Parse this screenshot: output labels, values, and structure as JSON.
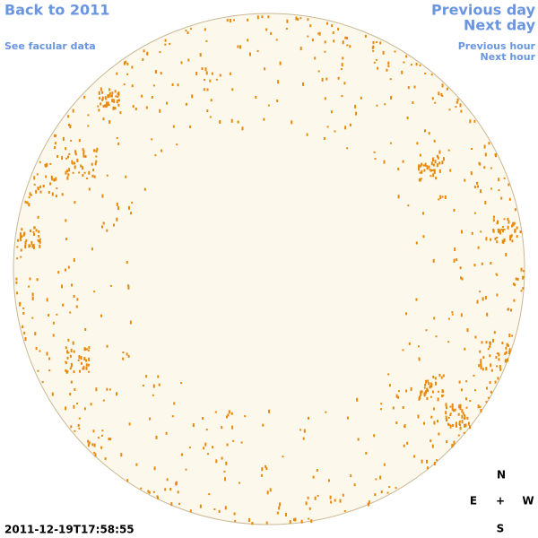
{
  "nav": {
    "back": "Back to 2011",
    "facular": "See facular data",
    "previous_day": "Previous day",
    "next_day": "Next day",
    "previous_hour": "Previous hour",
    "next_hour": "Next hour"
  },
  "timestamp": "2011-12-19T17:58:55",
  "compass": {
    "north": "N",
    "east": "E",
    "center": "+",
    "west": "W",
    "south": "S"
  }
}
